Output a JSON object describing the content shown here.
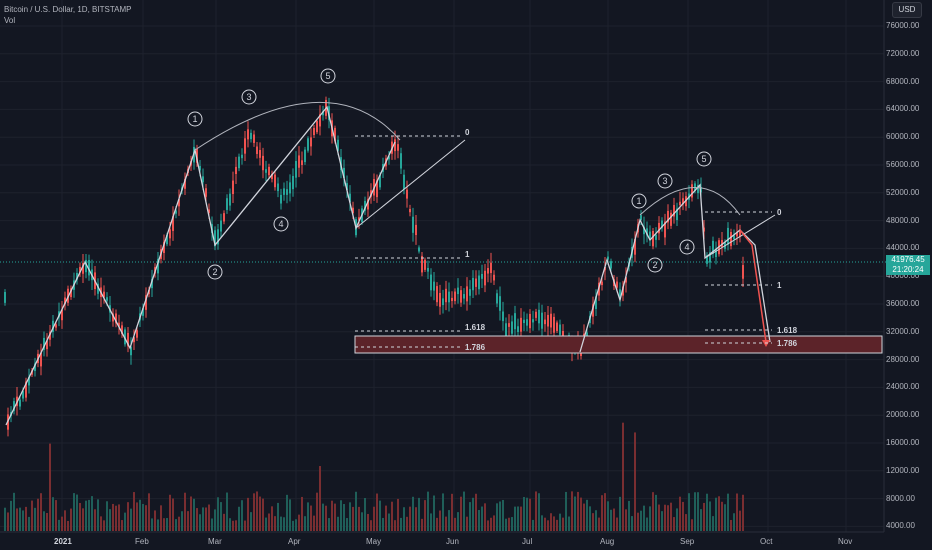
{
  "header": {
    "symbol_line": "Bitcoin / U.S. Dollar, 1D, BITSTAMP",
    "volume_label": "Vol",
    "currency": "USD"
  },
  "last_price": {
    "value": "41976.45",
    "countdown": "21:20:24",
    "color": "#26a69a"
  },
  "colors": {
    "up": "#26a69a",
    "down": "#ef5350",
    "up_volume": "#1f5f59",
    "down_volume": "#7a2e31",
    "wave_line": "#d1d4dc",
    "zone_fill": "#5c2329",
    "projection": "#ef5350"
  },
  "y_axis": {
    "ticks": [
      "76000.00",
      "72000.00",
      "68000.00",
      "64000.00",
      "60000.00",
      "56000.00",
      "52000.00",
      "48000.00",
      "44000.00",
      "40000.00",
      "36000.00",
      "32000.00",
      "28000.00",
      "24000.00",
      "20000.00",
      "16000.00",
      "12000.00",
      "8000.00",
      "4000.00"
    ],
    "range": [
      0,
      78000
    ]
  },
  "x_axis": {
    "ticks": [
      {
        "label": "2021",
        "year": true
      },
      {
        "label": "Feb",
        "year": false
      },
      {
        "label": "Mar",
        "year": false
      },
      {
        "label": "Apr",
        "year": false
      },
      {
        "label": "May",
        "year": false
      },
      {
        "label": "Jun",
        "year": false
      },
      {
        "label": "Jul",
        "year": false
      },
      {
        "label": "Aug",
        "year": false
      },
      {
        "label": "Sep",
        "year": false
      },
      {
        "label": "Oct",
        "year": false
      },
      {
        "label": "Nov",
        "year": false
      }
    ]
  },
  "annotations": {
    "wave_labels_left": [
      "1",
      "2",
      "3",
      "4",
      "5"
    ],
    "wave_labels_right": [
      "1",
      "2",
      "3",
      "4",
      "5"
    ],
    "fib_left": [
      "0",
      "1",
      "1.618",
      "1.786"
    ],
    "fib_right": [
      "0",
      "1",
      "1.618",
      "1.786"
    ]
  }
}
